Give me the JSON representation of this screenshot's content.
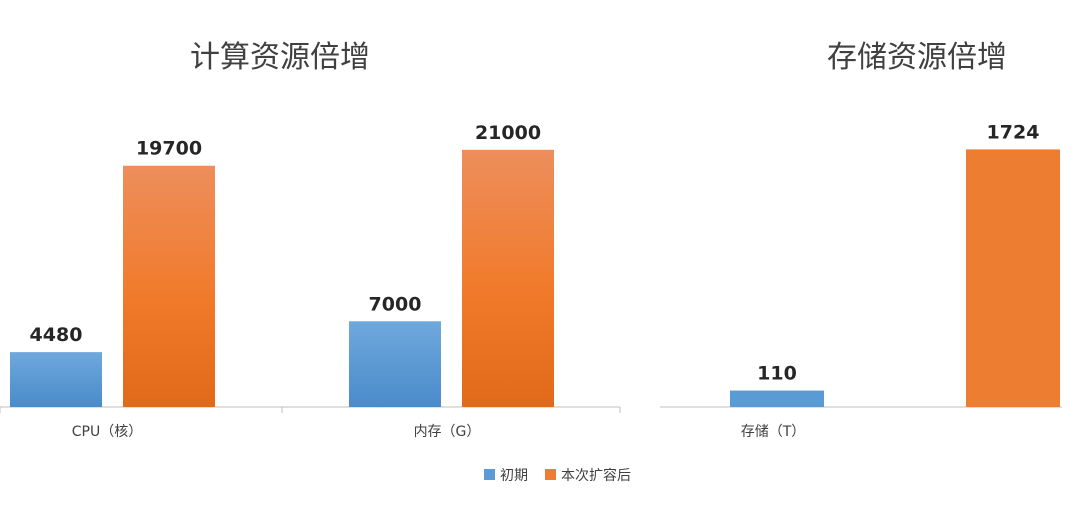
{
  "legend": {
    "initial": "初期",
    "expanded": "本次扩容后"
  },
  "colors": {
    "initial": "#5B9BD5",
    "expanded": "#ED7D31",
    "axis": "#BFBFBF"
  },
  "chart_data": [
    {
      "type": "bar",
      "title": "计算资源倍增",
      "categories": [
        "CPU（核）",
        "内存（G）"
      ],
      "series": [
        {
          "name": "初期",
          "values": [
            4480,
            7000
          ]
        },
        {
          "name": "本次扩容后",
          "values": [
            19700,
            21000
          ]
        }
      ],
      "ylim": [
        0,
        21800
      ],
      "data_labels": true,
      "legend_position": "bottom"
    },
    {
      "type": "bar",
      "title": "存储资源倍增",
      "categories": [
        "存储（T）"
      ],
      "series": [
        {
          "name": "初期",
          "values": [
            110
          ]
        },
        {
          "name": "本次扩容后",
          "values": [
            1724
          ]
        }
      ],
      "ylim": [
        0,
        1787
      ],
      "data_labels": true,
      "legend_position": "bottom"
    }
  ]
}
